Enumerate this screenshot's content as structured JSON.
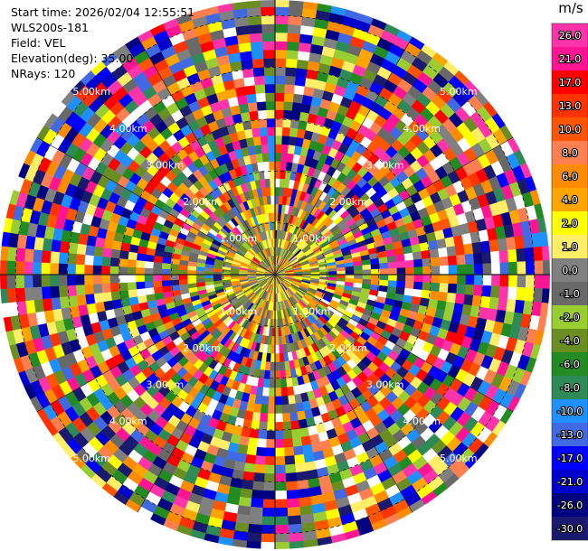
{
  "header": {
    "start_time": "Start time: 2026/02/04 12:55:51",
    "instrument": "WLS200s-181",
    "field": "Field: VEL",
    "elevation": "Elevation(deg): 35.00",
    "nrays": "NRays: 120"
  },
  "chart_data": {
    "type": "heatmap",
    "projection": "polar-ppi",
    "field": "VEL",
    "nrays": 120,
    "range_rings": [
      "1.00km",
      "2.00km",
      "3.00km",
      "4.00km",
      "5.00km"
    ],
    "max_range_km": 5.3,
    "colorbar": {
      "unit": "m/s",
      "ticks": [
        "26.0",
        "21.0",
        "17.0",
        "13.0",
        "10.0",
        "8.0",
        "6.0",
        "4.0",
        "2.0",
        "1.0",
        "0.0",
        "-1.0",
        "-2.0",
        "-4.0",
        "-6.0",
        "-8.0",
        "-10.0",
        "-13.0",
        "-17.0",
        "-21.0",
        "-26.0",
        "-30.0"
      ],
      "colors": [
        "#ff33aa",
        "#ff1493",
        "#ff0000",
        "#ff3300",
        "#ff5500",
        "#ff7f50",
        "#ff8c00",
        "#ffa500",
        "#ffff00",
        "#ffee66",
        "#808080",
        "#696969",
        "#9acd32",
        "#6b8e23",
        "#228b22",
        "#2e8b57",
        "#1e90ff",
        "#4169e1",
        "#0000ff",
        "#0000cd",
        "#000080",
        "#191970"
      ]
    }
  }
}
